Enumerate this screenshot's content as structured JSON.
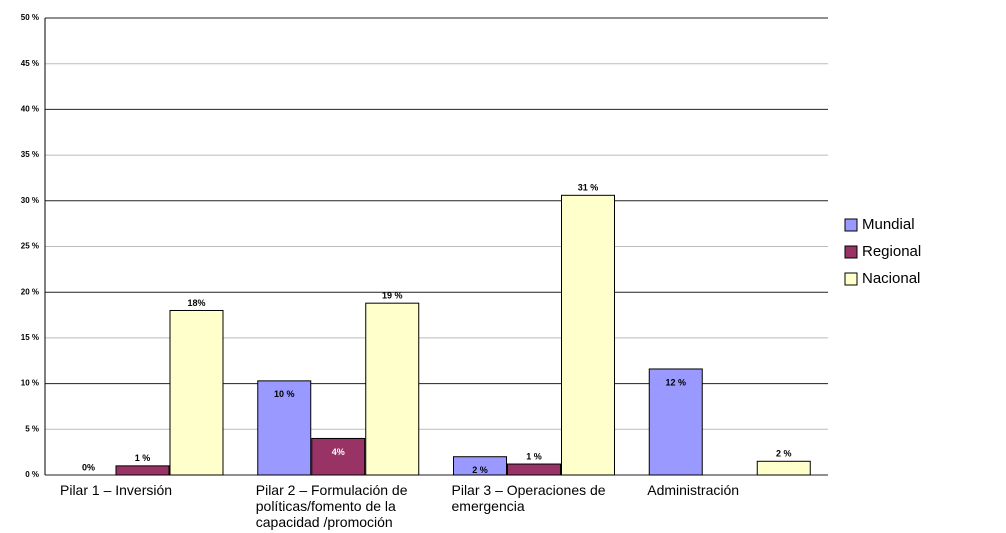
{
  "chart_data": {
    "type": "bar",
    "categories": [
      "Pilar 1 – Inversión",
      "Pilar 2 – Formulación de políticas/fomento de la capacidad /promoción",
      "Pilar 3 – Operaciones de emergencia",
      "Administración"
    ],
    "series": [
      {
        "name": "Mundial",
        "color": "#9999ff",
        "values": [
          0,
          10.3,
          2,
          11.6
        ],
        "value_labels": [
          "0%",
          "10 %",
          "2 %",
          "12 %"
        ]
      },
      {
        "name": "Regional",
        "color": "#993366",
        "values": [
          1,
          4,
          1.2,
          0
        ],
        "value_labels": [
          "1 %",
          "4%",
          "1 %",
          null
        ]
      },
      {
        "name": "Nacional",
        "color": "#ffffcc",
        "values": [
          18,
          18.8,
          30.6,
          1.5
        ],
        "value_labels": [
          "18%",
          "19 %",
          "31 %",
          "2 %"
        ]
      }
    ],
    "ylim": [
      0,
      50
    ],
    "yticks": [
      {
        "value": 0,
        "label": "0 %"
      },
      {
        "value": 5,
        "label": "5 %"
      },
      {
        "value": 10,
        "label": "10 %"
      },
      {
        "value": 15,
        "label": "15 %"
      },
      {
        "value": 20,
        "label": "20 %"
      },
      {
        "value": 25,
        "label": "25 %"
      },
      {
        "value": 30,
        "label": "30 %"
      },
      {
        "value": 35,
        "label": "35 %"
      },
      {
        "value": 40,
        "label": "40 %"
      },
      {
        "value": 45,
        "label": "45 %"
      },
      {
        "value": 50,
        "label": "50 %"
      }
    ],
    "grid": true,
    "legend": "right"
  }
}
